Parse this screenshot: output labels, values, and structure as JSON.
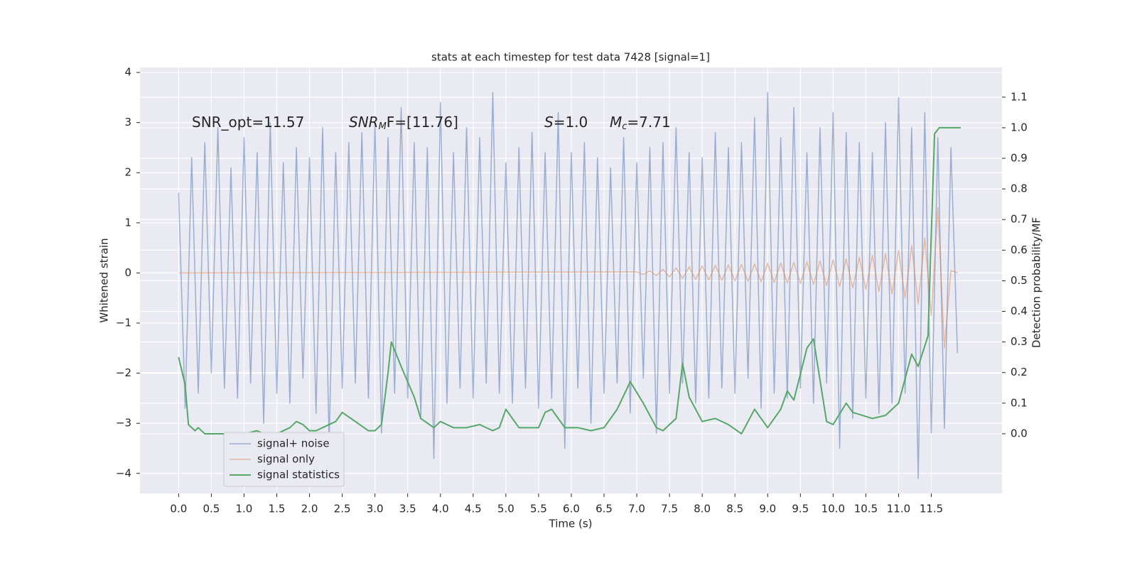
{
  "chart_data": {
    "type": "line",
    "title": "stats at each timestep for test data 7428 [signal=1]",
    "xlabel": "Time (s)",
    "ylabel": "Whitened strain",
    "y2label": "Detection probability/MF",
    "xlim": [
      -0.59,
      12.58
    ],
    "ylim": [
      -4.4,
      4.1
    ],
    "y2lim": [
      -0.195,
      1.197
    ],
    "xticks": [
      {
        "value": 0,
        "label": "0.0"
      },
      0.5,
      {
        "value": 1,
        "label": "1.0"
      },
      1.5,
      {
        "value": 2,
        "label": "2.0"
      },
      2.5,
      {
        "value": 3,
        "label": "3.0"
      },
      3.5,
      {
        "value": 4,
        "label": "4.0"
      },
      4.5,
      {
        "value": 5,
        "label": "5.0"
      },
      5.5,
      {
        "value": 6,
        "label": "6.0"
      },
      6.5,
      {
        "value": 7,
        "label": "7.0"
      },
      7.5,
      {
        "value": 8,
        "label": "8.0"
      },
      8.5,
      {
        "value": 9,
        "label": "9.0"
      },
      9.5,
      {
        "value": 10,
        "label": "10.0"
      },
      10.5,
      {
        "value": 11,
        "label": "11.0"
      },
      11.5
    ],
    "yticks": [
      {
        "value": -4,
        "label": "−4"
      },
      {
        "value": -3,
        "label": "−3"
      },
      {
        "value": -2,
        "label": "−2"
      },
      {
        "value": -1,
        "label": "−1"
      },
      0,
      1,
      2,
      3,
      4
    ],
    "y2ticks": [
      {
        "value": 0,
        "label": "0.0"
      },
      0.1,
      0.2,
      0.3,
      0.4,
      0.5,
      0.6,
      0.7,
      0.8,
      0.9,
      {
        "value": 1,
        "label": "1.0"
      },
      1.1
    ],
    "grid": true,
    "legend": "lower left",
    "annotations": [
      {
        "text": "SNR_opt=11.57"
      },
      {
        "italic": "SNR",
        "sub": "M",
        "text": "F=[11.76]"
      },
      {
        "italic": "S",
        "text": "=1.0"
      },
      {
        "italic": "M",
        "sub": "c",
        "text": "=7.71"
      }
    ],
    "series": [
      {
        "name": "signal+ noise",
        "color": "#4c72b0",
        "x": [
          0.0,
          0.1,
          0.2,
          0.3,
          0.4,
          0.5,
          0.6,
          0.7,
          0.8,
          0.9,
          1.0,
          1.1,
          1.2,
          1.3,
          1.4,
          1.5,
          1.6,
          1.7,
          1.8,
          1.9,
          2.0,
          2.1,
          2.2,
          2.3,
          2.4,
          2.5,
          2.6,
          2.7,
          2.8,
          2.9,
          3.0,
          3.1,
          3.2,
          3.3,
          3.4,
          3.5,
          3.6,
          3.7,
          3.8,
          3.9,
          4.0,
          4.1,
          4.2,
          4.3,
          4.4,
          4.5,
          4.6,
          4.7,
          4.8,
          4.9,
          5.0,
          5.1,
          5.2,
          5.3,
          5.4,
          5.5,
          5.6,
          5.7,
          5.8,
          5.9,
          6.0,
          6.1,
          6.2,
          6.3,
          6.4,
          6.5,
          6.6,
          6.7,
          6.8,
          6.9,
          7.0,
          7.1,
          7.2,
          7.3,
          7.4,
          7.5,
          7.6,
          7.7,
          7.8,
          7.9,
          8.0,
          8.1,
          8.2,
          8.3,
          8.4,
          8.5,
          8.6,
          8.7,
          8.8,
          8.9,
          9.0,
          9.1,
          9.2,
          9.3,
          9.4,
          9.5,
          9.6,
          9.7,
          9.8,
          9.9,
          10.0,
          10.1,
          10.2,
          10.3,
          10.4,
          10.5,
          10.6,
          10.7,
          10.8,
          10.9,
          11.0,
          11.1,
          11.2,
          11.3,
          11.4,
          11.5,
          11.6,
          11.7,
          11.8,
          11.9
        ],
        "values": [
          1.6,
          -2.7,
          2.3,
          -2.4,
          2.6,
          -2.0,
          2.9,
          -2.3,
          2.1,
          -2.5,
          2.7,
          -2.2,
          2.4,
          -3.0,
          3.0,
          -2.4,
          2.2,
          -2.6,
          2.5,
          -2.1,
          2.3,
          -2.8,
          2.9,
          -3.4,
          2.4,
          -2.3,
          2.6,
          -2.2,
          2.8,
          -2.5,
          3.0,
          -3.2,
          2.7,
          -2.4,
          3.3,
          -2.5,
          2.6,
          -2.9,
          2.5,
          -3.7,
          3.4,
          -2.6,
          2.4,
          -2.3,
          2.9,
          -2.5,
          2.7,
          -2.2,
          3.6,
          -2.4,
          2.2,
          -2.6,
          2.5,
          -2.3,
          2.8,
          -2.7,
          2.4,
          -2.5,
          3.2,
          -3.5,
          2.4,
          -2.3,
          2.6,
          -3.0,
          2.3,
          -2.4,
          2.1,
          -2.2,
          2.7,
          -2.8,
          2.2,
          -2.1,
          2.5,
          -3.2,
          2.6,
          -2.4,
          2.9,
          -2.2,
          2.4,
          -2.6,
          2.3,
          -2.5,
          2.8,
          -2.3,
          2.5,
          -2.4,
          2.6,
          -2.1,
          3.1,
          -2.7,
          3.6,
          -2.4,
          2.7,
          -2.5,
          3.3,
          -2.3,
          2.4,
          -2.6,
          2.9,
          -2.2,
          3.2,
          -3.5,
          2.8,
          -2.9,
          2.6,
          -2.5,
          2.4,
          -2.8,
          3.0,
          -2.6,
          3.5,
          -2.4,
          2.9,
          -4.1,
          3.2,
          -3.2,
          2.7,
          -3.1,
          2.5,
          -1.6
        ]
      },
      {
        "name": "signal only",
        "color": "#dd8452",
        "x": [
          0.0,
          7.0,
          7.1,
          7.2,
          7.3,
          7.4,
          7.5,
          7.6,
          7.7,
          7.8,
          7.9,
          8.0,
          8.1,
          8.2,
          8.3,
          8.4,
          8.5,
          8.6,
          8.7,
          8.8,
          8.9,
          9.0,
          9.1,
          9.2,
          9.3,
          9.4,
          9.5,
          9.6,
          9.7,
          9.8,
          9.9,
          10.0,
          10.1,
          10.2,
          10.3,
          10.4,
          10.5,
          10.6,
          10.7,
          10.8,
          10.9,
          11.0,
          11.1,
          11.2,
          11.3,
          11.4,
          11.5,
          11.6,
          11.7,
          11.8,
          11.9
        ],
        "values": [
          0,
          0.02,
          -0.03,
          0.04,
          -0.05,
          0.07,
          -0.08,
          0.1,
          -0.11,
          0.12,
          -0.13,
          0.14,
          -0.14,
          0.15,
          -0.15,
          0.16,
          -0.16,
          0.17,
          -0.17,
          0.18,
          -0.18,
          0.19,
          -0.19,
          0.2,
          -0.2,
          0.21,
          -0.21,
          0.22,
          -0.23,
          0.24,
          -0.25,
          0.26,
          -0.27,
          0.28,
          -0.3,
          0.31,
          -0.33,
          0.35,
          -0.37,
          0.39,
          -0.42,
          0.45,
          -0.5,
          0.55,
          -0.62,
          0.7,
          -0.85,
          1.3,
          -1.5,
          0.05,
          0.0
        ]
      },
      {
        "name": "signal statistics",
        "color": "#55a868",
        "axis": "y2",
        "x": [
          0.0,
          0.1,
          0.15,
          0.25,
          0.3,
          0.4,
          0.5,
          0.6,
          0.8,
          1.0,
          1.2,
          1.3,
          1.5,
          1.7,
          1.8,
          1.9,
          2.0,
          2.1,
          2.2,
          2.4,
          2.5,
          2.7,
          2.9,
          3.0,
          3.1,
          3.2,
          3.25,
          3.4,
          3.6,
          3.7,
          3.9,
          4.0,
          4.2,
          4.4,
          4.6,
          4.8,
          4.9,
          5.0,
          5.2,
          5.5,
          5.6,
          5.7,
          5.9,
          6.1,
          6.3,
          6.5,
          6.7,
          6.9,
          7.1,
          7.3,
          7.4,
          7.6,
          7.7,
          7.8,
          8.0,
          8.2,
          8.4,
          8.6,
          8.8,
          9.0,
          9.2,
          9.3,
          9.4,
          9.6,
          9.7,
          9.9,
          10.0,
          10.2,
          10.3,
          10.6,
          10.8,
          11.0,
          11.2,
          11.3,
          11.45,
          11.55,
          11.62,
          11.68,
          11.8,
          11.95
        ],
        "values": [
          0.25,
          0.16,
          0.03,
          0.01,
          0.02,
          0.0,
          0.0,
          0.0,
          0.0,
          0.0,
          0.01,
          0.0,
          0.0,
          0.02,
          0.04,
          0.03,
          0.01,
          0.01,
          0.02,
          0.04,
          0.07,
          0.04,
          0.01,
          0.01,
          0.03,
          0.2,
          0.3,
          0.22,
          0.12,
          0.05,
          0.02,
          0.04,
          0.02,
          0.02,
          0.03,
          0.01,
          0.02,
          0.08,
          0.02,
          0.02,
          0.07,
          0.08,
          0.02,
          0.02,
          0.01,
          0.02,
          0.08,
          0.17,
          0.1,
          0.02,
          0.01,
          0.05,
          0.23,
          0.12,
          0.04,
          0.05,
          0.03,
          0.0,
          0.08,
          0.02,
          0.08,
          0.14,
          0.11,
          0.28,
          0.31,
          0.04,
          0.03,
          0.1,
          0.07,
          0.05,
          0.06,
          0.1,
          0.26,
          0.22,
          0.32,
          0.98,
          1.0,
          1.0,
          1.0,
          1.0
        ]
      }
    ]
  }
}
